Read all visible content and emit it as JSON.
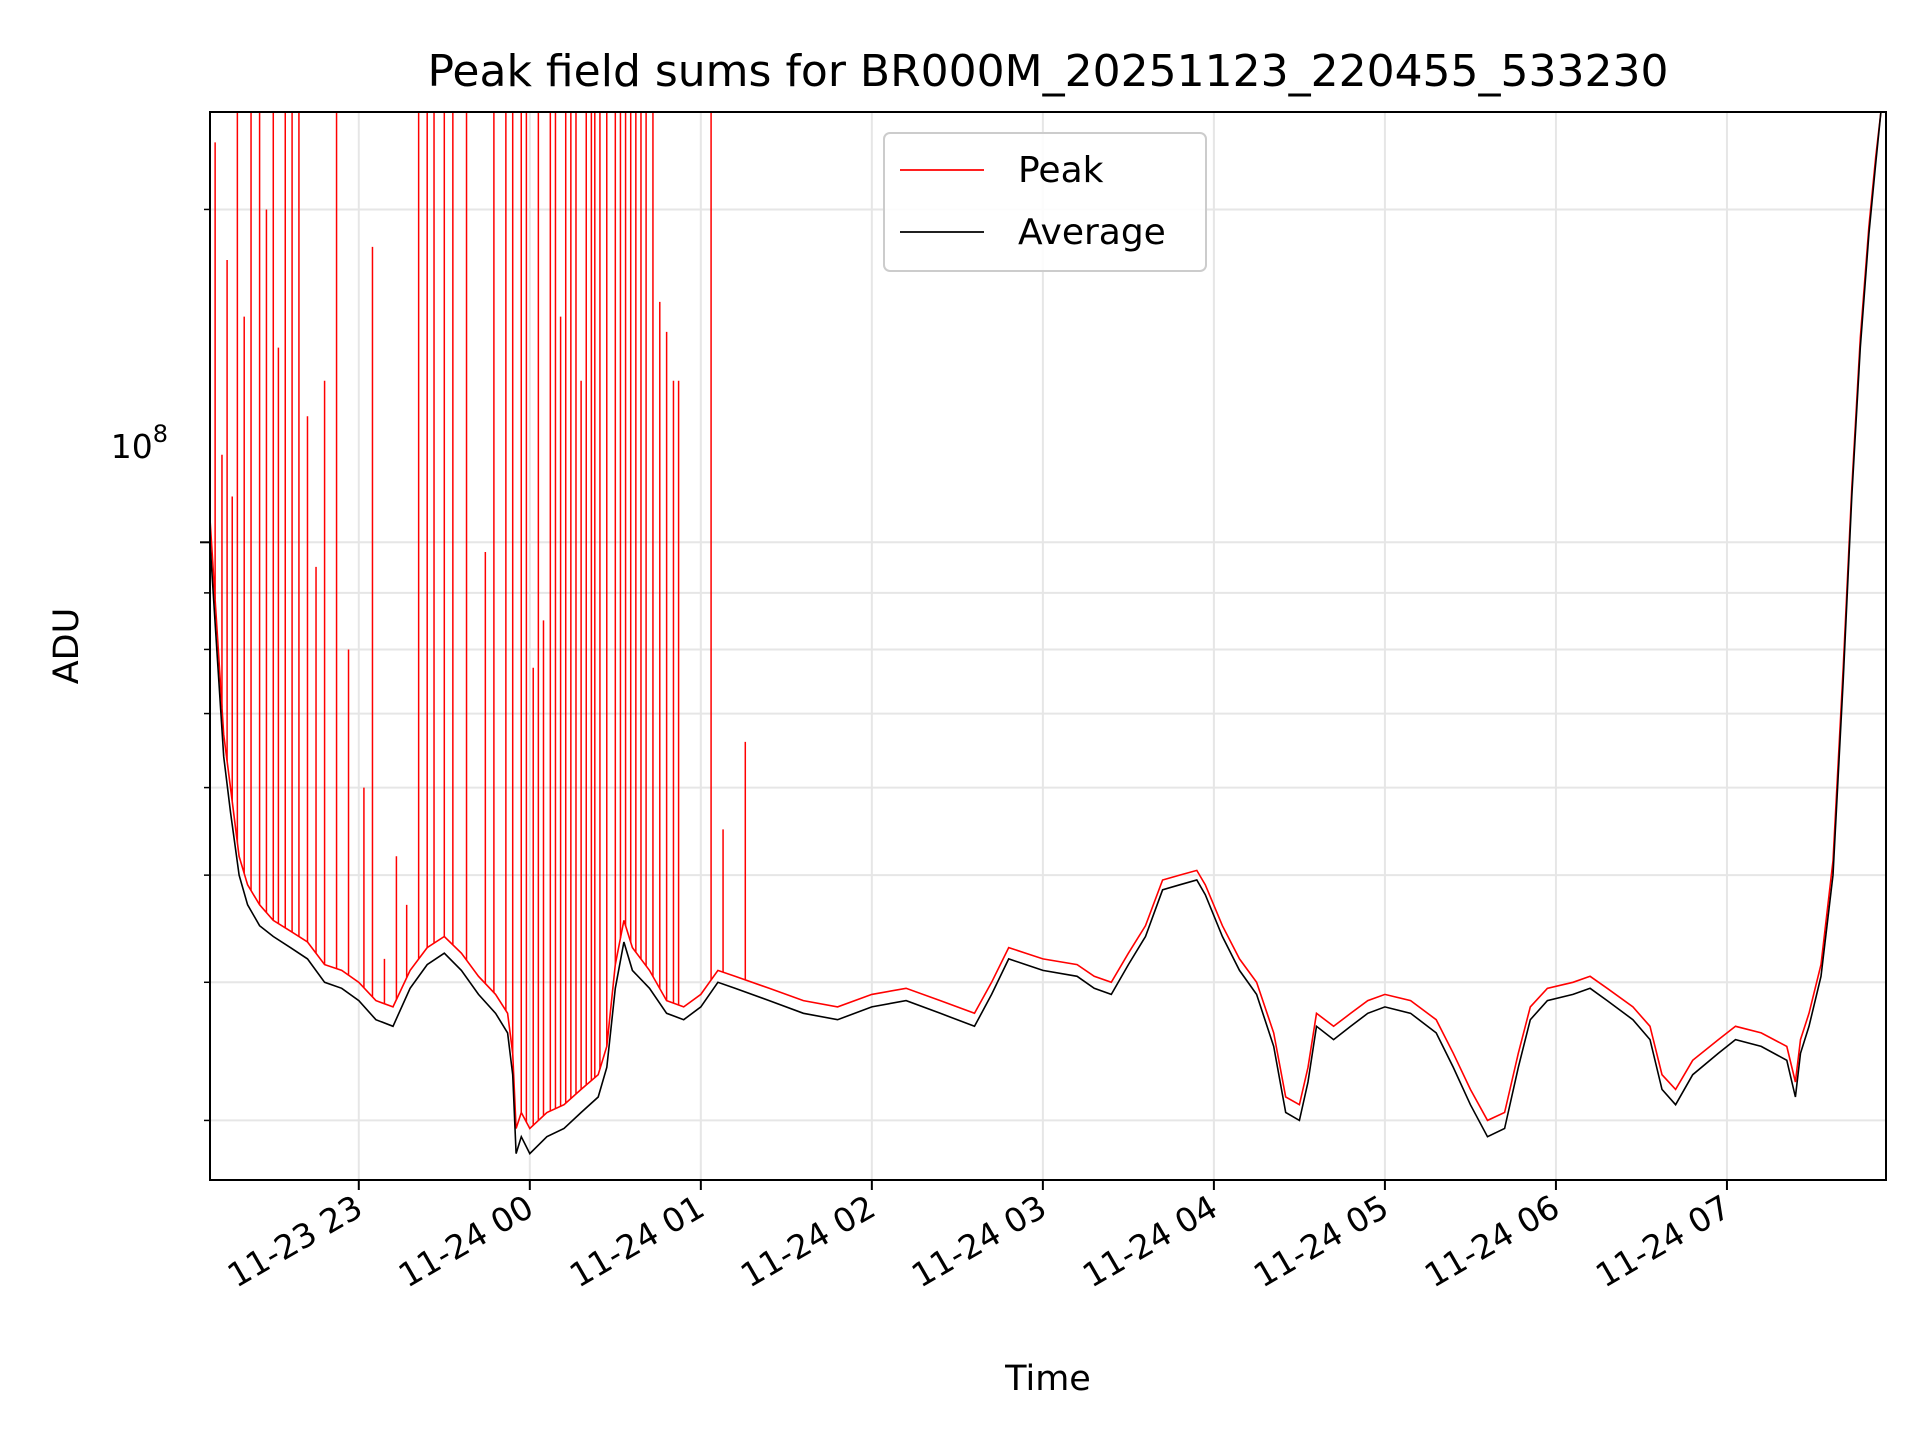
{
  "chart_data": {
    "type": "line",
    "title": "Peak field sums for BR000M_20251123_220455_533230",
    "xlabel": "Time",
    "ylabel": "ADU",
    "yscale": "log",
    "ylim": [
      26500000,
      245000000
    ],
    "xlim_hours": [
      -1.87,
      7.93
    ],
    "xlim_note": "hours relative to 11-24 00:00",
    "x_ticks": [
      {
        "hour": -1,
        "label": "11-23 23"
      },
      {
        "hour": 0,
        "label": "11-24 00"
      },
      {
        "hour": 1,
        "label": "11-24 01"
      },
      {
        "hour": 2,
        "label": "11-24 02"
      },
      {
        "hour": 3,
        "label": "11-24 03"
      },
      {
        "hour": 4,
        "label": "11-24 04"
      },
      {
        "hour": 5,
        "label": "11-24 05"
      },
      {
        "hour": 6,
        "label": "11-24 06"
      },
      {
        "hour": 7,
        "label": "11-24 07"
      }
    ],
    "y_major_tick": {
      "value": 100000000,
      "label_base": "10",
      "label_exp": "8"
    },
    "y_minor_ticks": [
      30000000,
      40000000,
      50000000,
      60000000,
      70000000,
      80000000,
      90000000,
      200000000
    ],
    "grid": true,
    "legend_position": "upper-center",
    "series": [
      {
        "name": "Average",
        "color": "#000000",
        "points": [
          [
            -1.87,
            100000000
          ],
          [
            -1.83,
            80000000
          ],
          [
            -1.79,
            64000000
          ],
          [
            -1.75,
            57000000
          ],
          [
            -1.7,
            50000000
          ],
          [
            -1.65,
            47000000
          ],
          [
            -1.58,
            45000000
          ],
          [
            -1.5,
            44000000
          ],
          [
            -1.4,
            43000000
          ],
          [
            -1.3,
            42000000
          ],
          [
            -1.2,
            40000000
          ],
          [
            -1.1,
            39500000
          ],
          [
            -1.0,
            38500000
          ],
          [
            -0.9,
            37000000
          ],
          [
            -0.8,
            36500000
          ],
          [
            -0.7,
            39500000
          ],
          [
            -0.6,
            41500000
          ],
          [
            -0.5,
            42500000
          ],
          [
            -0.4,
            41000000
          ],
          [
            -0.3,
            39000000
          ],
          [
            -0.2,
            37500000
          ],
          [
            -0.13,
            36000000
          ],
          [
            -0.1,
            33000000
          ],
          [
            -0.08,
            28000000
          ],
          [
            -0.05,
            29000000
          ],
          [
            0.0,
            28000000
          ],
          [
            0.1,
            29000000
          ],
          [
            0.2,
            29500000
          ],
          [
            0.3,
            30500000
          ],
          [
            0.4,
            31500000
          ],
          [
            0.45,
            33500000
          ],
          [
            0.5,
            39500000
          ],
          [
            0.55,
            43500000
          ],
          [
            0.6,
            41000000
          ],
          [
            0.7,
            39500000
          ],
          [
            0.8,
            37500000
          ],
          [
            0.9,
            37000000
          ],
          [
            1.0,
            38000000
          ],
          [
            1.1,
            40000000
          ],
          [
            1.2,
            39500000
          ],
          [
            1.4,
            38500000
          ],
          [
            1.6,
            37500000
          ],
          [
            1.8,
            37000000
          ],
          [
            2.0,
            38000000
          ],
          [
            2.2,
            38500000
          ],
          [
            2.4,
            37500000
          ],
          [
            2.6,
            36500000
          ],
          [
            2.7,
            39000000
          ],
          [
            2.8,
            42000000
          ],
          [
            2.9,
            41500000
          ],
          [
            3.0,
            41000000
          ],
          [
            3.2,
            40500000
          ],
          [
            3.3,
            39500000
          ],
          [
            3.4,
            39000000
          ],
          [
            3.5,
            41500000
          ],
          [
            3.6,
            44000000
          ],
          [
            3.7,
            48500000
          ],
          [
            3.8,
            49000000
          ],
          [
            3.9,
            49500000
          ],
          [
            3.95,
            48000000
          ],
          [
            4.05,
            44000000
          ],
          [
            4.15,
            41000000
          ],
          [
            4.25,
            39000000
          ],
          [
            4.35,
            35000000
          ],
          [
            4.42,
            30500000
          ],
          [
            4.5,
            30000000
          ],
          [
            4.55,
            32500000
          ],
          [
            4.6,
            36500000
          ],
          [
            4.7,
            35500000
          ],
          [
            4.8,
            36500000
          ],
          [
            4.9,
            37500000
          ],
          [
            5.0,
            38000000
          ],
          [
            5.15,
            37500000
          ],
          [
            5.3,
            36000000
          ],
          [
            5.4,
            33500000
          ],
          [
            5.5,
            31000000
          ],
          [
            5.6,
            29000000
          ],
          [
            5.7,
            29500000
          ],
          [
            5.78,
            33500000
          ],
          [
            5.85,
            37000000
          ],
          [
            5.95,
            38500000
          ],
          [
            6.1,
            39000000
          ],
          [
            6.2,
            39500000
          ],
          [
            6.3,
            38500000
          ],
          [
            6.45,
            37000000
          ],
          [
            6.55,
            35500000
          ],
          [
            6.62,
            32000000
          ],
          [
            6.7,
            31000000
          ],
          [
            6.8,
            33000000
          ],
          [
            6.95,
            34500000
          ],
          [
            7.05,
            35500000
          ],
          [
            7.2,
            35000000
          ],
          [
            7.35,
            34000000
          ],
          [
            7.4,
            31500000
          ],
          [
            7.43,
            34500000
          ],
          [
            7.48,
            36500000
          ],
          [
            7.55,
            40500000
          ],
          [
            7.62,
            50000000
          ],
          [
            7.68,
            75000000
          ],
          [
            7.73,
            110000000
          ],
          [
            7.78,
            150000000
          ],
          [
            7.83,
            190000000
          ],
          [
            7.87,
            220000000
          ],
          [
            7.9,
            245000000
          ]
        ]
      },
      {
        "name": "Peak",
        "color": "#ff0000",
        "points": [
          [
            -1.87,
            105000000
          ],
          [
            -1.83,
            84000000
          ],
          [
            -1.79,
            67000000
          ],
          [
            -1.75,
            60000000
          ],
          [
            -1.7,
            52000000
          ],
          [
            -1.65,
            49000000
          ],
          [
            -1.58,
            47000000
          ],
          [
            -1.5,
            45500000
          ],
          [
            -1.4,
            44500000
          ],
          [
            -1.3,
            43500000
          ],
          [
            -1.2,
            41500000
          ],
          [
            -1.1,
            41000000
          ],
          [
            -1.0,
            40000000
          ],
          [
            -0.9,
            38500000
          ],
          [
            -0.8,
            38000000
          ],
          [
            -0.7,
            41000000
          ],
          [
            -0.6,
            43000000
          ],
          [
            -0.5,
            44000000
          ],
          [
            -0.4,
            42500000
          ],
          [
            -0.3,
            40500000
          ],
          [
            -0.2,
            39000000
          ],
          [
            -0.13,
            37500000
          ],
          [
            -0.1,
            34500000
          ],
          [
            -0.08,
            29500000
          ],
          [
            -0.05,
            30500000
          ],
          [
            0.0,
            29500000
          ],
          [
            0.1,
            30500000
          ],
          [
            0.2,
            31000000
          ],
          [
            0.3,
            32000000
          ],
          [
            0.4,
            33000000
          ],
          [
            0.45,
            35000000
          ],
          [
            0.5,
            41500000
          ],
          [
            0.55,
            45500000
          ],
          [
            0.6,
            43000000
          ],
          [
            0.7,
            41000000
          ],
          [
            0.8,
            38500000
          ],
          [
            0.9,
            38000000
          ],
          [
            1.0,
            39000000
          ],
          [
            1.1,
            41000000
          ],
          [
            1.2,
            40500000
          ],
          [
            1.4,
            39500000
          ],
          [
            1.6,
            38500000
          ],
          [
            1.8,
            38000000
          ],
          [
            2.0,
            39000000
          ],
          [
            2.2,
            39500000
          ],
          [
            2.4,
            38500000
          ],
          [
            2.6,
            37500000
          ],
          [
            2.7,
            40000000
          ],
          [
            2.8,
            43000000
          ],
          [
            2.9,
            42500000
          ],
          [
            3.0,
            42000000
          ],
          [
            3.2,
            41500000
          ],
          [
            3.3,
            40500000
          ],
          [
            3.4,
            40000000
          ],
          [
            3.5,
            42500000
          ],
          [
            3.6,
            45000000
          ],
          [
            3.7,
            49500000
          ],
          [
            3.8,
            50000000
          ],
          [
            3.9,
            50500000
          ],
          [
            3.95,
            49000000
          ],
          [
            4.05,
            45000000
          ],
          [
            4.15,
            42000000
          ],
          [
            4.25,
            40000000
          ],
          [
            4.35,
            36000000
          ],
          [
            4.42,
            31500000
          ],
          [
            4.5,
            31000000
          ],
          [
            4.55,
            33500000
          ],
          [
            4.6,
            37500000
          ],
          [
            4.7,
            36500000
          ],
          [
            4.8,
            37500000
          ],
          [
            4.9,
            38500000
          ],
          [
            5.0,
            39000000
          ],
          [
            5.15,
            38500000
          ],
          [
            5.3,
            37000000
          ],
          [
            5.4,
            34500000
          ],
          [
            5.5,
            32000000
          ],
          [
            5.6,
            30000000
          ],
          [
            5.7,
            30500000
          ],
          [
            5.78,
            34500000
          ],
          [
            5.85,
            38000000
          ],
          [
            5.95,
            39500000
          ],
          [
            6.1,
            40000000
          ],
          [
            6.2,
            40500000
          ],
          [
            6.3,
            39500000
          ],
          [
            6.45,
            38000000
          ],
          [
            6.55,
            36500000
          ],
          [
            6.62,
            33000000
          ],
          [
            6.7,
            32000000
          ],
          [
            6.8,
            34000000
          ],
          [
            6.95,
            35500000
          ],
          [
            7.05,
            36500000
          ],
          [
            7.2,
            36000000
          ],
          [
            7.35,
            35000000
          ],
          [
            7.4,
            32500000
          ],
          [
            7.43,
            35500000
          ],
          [
            7.48,
            37500000
          ],
          [
            7.55,
            41500000
          ],
          [
            7.62,
            51500000
          ],
          [
            7.68,
            77000000
          ],
          [
            7.73,
            112000000
          ],
          [
            7.78,
            153000000
          ],
          [
            7.83,
            193000000
          ],
          [
            7.87,
            223000000
          ],
          [
            7.9,
            245000000
          ]
        ],
        "spikes": [
          [
            -1.84,
            230000000
          ],
          [
            -1.8,
            120000000
          ],
          [
            -1.77,
            180000000
          ],
          [
            -1.74,
            110000000
          ],
          [
            -1.71,
            245000000
          ],
          [
            -1.67,
            160000000
          ],
          [
            -1.63,
            245000000
          ],
          [
            -1.58,
            245000000
          ],
          [
            -1.54,
            200000000
          ],
          [
            -1.5,
            245000000
          ],
          [
            -1.47,
            150000000
          ],
          [
            -1.43,
            245000000
          ],
          [
            -1.39,
            245000000
          ],
          [
            -1.35,
            245000000
          ],
          [
            -1.3,
            130000000
          ],
          [
            -1.25,
            95000000
          ],
          [
            -1.2,
            140000000
          ],
          [
            -1.13,
            245000000
          ],
          [
            -1.06,
            80000000
          ],
          [
            -0.97,
            60000000
          ],
          [
            -0.92,
            185000000
          ],
          [
            -0.85,
            42000000
          ],
          [
            -0.78,
            52000000
          ],
          [
            -0.72,
            47000000
          ],
          [
            -0.65,
            245000000
          ],
          [
            -0.6,
            245000000
          ],
          [
            -0.56,
            245000000
          ],
          [
            -0.5,
            245000000
          ],
          [
            -0.45,
            245000000
          ],
          [
            -0.37,
            245000000
          ],
          [
            -0.26,
            98000000
          ],
          [
            -0.21,
            245000000
          ],
          [
            -0.14,
            245000000
          ],
          [
            -0.1,
            245000000
          ],
          [
            -0.05,
            245000000
          ],
          [
            -0.02,
            245000000
          ],
          [
            0.02,
            77000000
          ],
          [
            0.05,
            245000000
          ],
          [
            0.08,
            85000000
          ],
          [
            0.12,
            245000000
          ],
          [
            0.15,
            245000000
          ],
          [
            0.18,
            160000000
          ],
          [
            0.21,
            245000000
          ],
          [
            0.24,
            245000000
          ],
          [
            0.27,
            245000000
          ],
          [
            0.3,
            140000000
          ],
          [
            0.33,
            245000000
          ],
          [
            0.36,
            245000000
          ],
          [
            0.38,
            245000000
          ],
          [
            0.41,
            245000000
          ],
          [
            0.45,
            245000000
          ],
          [
            0.5,
            245000000
          ],
          [
            0.53,
            245000000
          ],
          [
            0.56,
            245000000
          ],
          [
            0.59,
            245000000
          ],
          [
            0.62,
            245000000
          ],
          [
            0.65,
            245000000
          ],
          [
            0.68,
            245000000
          ],
          [
            0.72,
            245000000
          ],
          [
            0.76,
            165000000
          ],
          [
            0.8,
            155000000
          ],
          [
            0.84,
            140000000
          ],
          [
            0.87,
            140000000
          ],
          [
            1.06,
            245000000
          ],
          [
            1.13,
            55000000
          ],
          [
            1.26,
            66000000
          ]
        ]
      }
    ]
  }
}
